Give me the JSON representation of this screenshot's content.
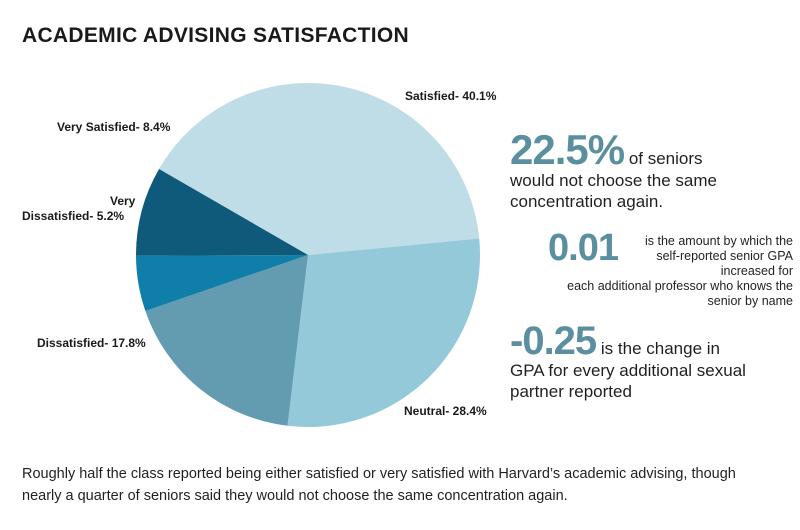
{
  "chart_data": {
    "type": "pie",
    "title": "ACADEMIC ADVISING SATISFACTION",
    "slices": [
      {
        "label": "Satisfied- 40.1%",
        "value": 40.1,
        "color": "#bfdde6"
      },
      {
        "label": "Neutral- 28.4%",
        "value": 28.4,
        "color": "#94c9da"
      },
      {
        "label": "Dissatisfied- 17.8%",
        "value": 17.8,
        "color": "#639bb0"
      },
      {
        "label_line1": "Very",
        "label_line2": "Dissatisfied- 5.2%",
        "value": 5.2,
        "color": "#0f7ea9"
      },
      {
        "label": "Very Satisfied- 8.4%",
        "value": 8.4,
        "color": "#0f5a7a"
      }
    ]
  },
  "stats": [
    {
      "number": "22.5%",
      "text_line1": "of seniors",
      "text_line2": "would not choose the same",
      "text_line3": "concentration again."
    },
    {
      "number": "0.01",
      "text_line1": "is the amount by which the",
      "text_line2": "self-reported senior GPA increased for",
      "text_line3": "each additional professor who knows the",
      "text_line4": "senior by name"
    },
    {
      "number": "-0.25",
      "text_line1": "is the change in",
      "text_line2": "GPA for every additional sexual",
      "text_line3": "partner reported"
    }
  ],
  "caption_line1": "Roughly half the class reported being either satisfied or very satisfied with Harvard’s academic advising, though",
  "caption_line2": "nearly a quarter of seniors said they would not choose the same concentration again."
}
